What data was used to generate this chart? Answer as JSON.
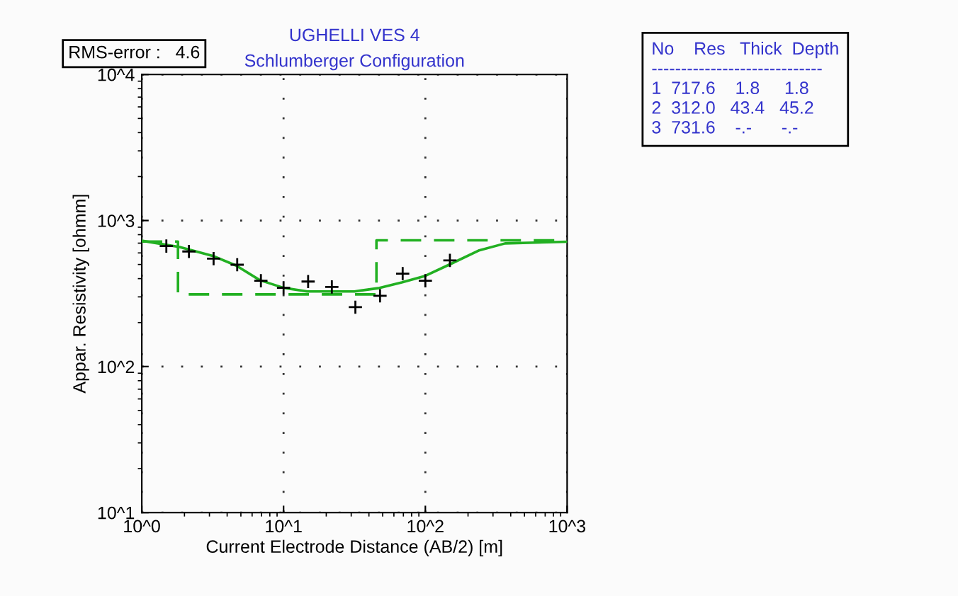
{
  "chart_data": {
    "type": "scatter",
    "title": "UGHELLI VES 4",
    "subtitle": "Schlumberger Configuration",
    "xlabel": "Current Electrode Distance (AB/2) [m]",
    "ylabel": "Appar. Resistivity [ohmm]",
    "log": "xy",
    "xlim": [
      1,
      1000
    ],
    "ylim": [
      10,
      10000
    ],
    "xticks": [
      {
        "value": 1,
        "label": "10^0"
      },
      {
        "value": 10,
        "label": "10^1"
      },
      {
        "value": 100,
        "label": "10^2"
      },
      {
        "value": 1000,
        "label": "10^3"
      }
    ],
    "yticks": [
      {
        "value": 10,
        "label": "10^1"
      },
      {
        "value": 100,
        "label": "10^2"
      },
      {
        "value": 1000,
        "label": "10^3"
      },
      {
        "value": 10000,
        "label": "10^4"
      }
    ],
    "grid": true,
    "series": [
      {
        "marker": "cross",
        "color": "#000000",
        "x": [
          1.49,
          2.15,
          3.21,
          4.71,
          6.92,
          10,
          14.9,
          21.9,
          32.1,
          47.9,
          69.2,
          100,
          149
        ],
        "values": [
          668,
          614,
          548,
          498,
          387,
          346,
          382,
          351,
          255,
          305,
          433,
          387,
          533
        ]
      },
      {
        "type": "line",
        "line_style": "solid",
        "marker": "none",
        "color": "#22b022",
        "x": [
          1,
          1.85,
          3.16,
          4.64,
          6.81,
          10,
          14.7,
          31.6,
          46.4,
          68.1,
          100,
          147,
          237,
          365,
          1000
        ],
        "values": [
          727,
          658,
          573,
          491,
          390,
          346,
          327,
          327,
          344,
          377,
          418,
          498,
          622,
          697,
          716
        ]
      },
      {
        "type": "line",
        "line_style": "dashed",
        "marker": "none",
        "color": "#22b022",
        "x": [
          1,
          1.8,
          1.8,
          45.2,
          45.2,
          1000
        ],
        "values": [
          717.6,
          717.6,
          312.0,
          312.0,
          731.6,
          731.6
        ]
      }
    ],
    "annotations": [
      "RMS-error :   4.6",
      "No    Res   Thick  Depth",
      "-----------------------------",
      "1  717.6    1.8     1.8",
      "2  312.0   43.4   45.2",
      "3  731.6    -.-      -.-"
    ]
  }
}
